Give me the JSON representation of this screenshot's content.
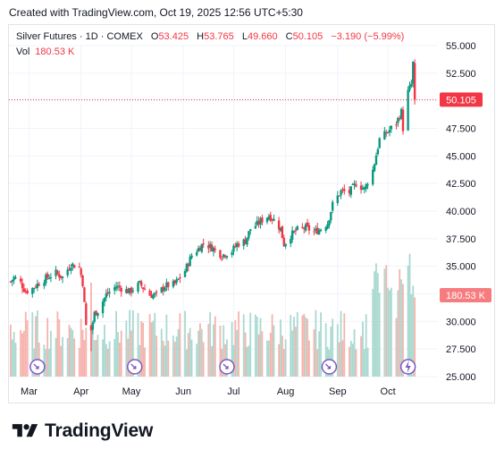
{
  "created_line": "Created with TradingView.com, Oct 19, 2025 12:56 UTC+5:30",
  "legend": {
    "symbol": "Silver Futures · 1D · COMEX",
    "o_label": "O",
    "o_value": "53.425",
    "h_label": "H",
    "h_value": "53.765",
    "l_label": "L",
    "l_value": "49.660",
    "c_label": "C",
    "c_value": "50.105",
    "change": "−3.190 (−5.99%)",
    "vol_label": "Vol",
    "vol_value": "180.53 K"
  },
  "price_badge": "50.105",
  "volume_badge": "180.53 K",
  "brand": "TradingView",
  "colors": {
    "up": "#089981",
    "down": "#f23645",
    "up_vol": "#a9d9d0",
    "down_vol": "#f6b3ad",
    "event": "#7e57c2"
  },
  "chart_data": {
    "type": "candlestick",
    "y_axis": {
      "ticks": [
        "55.000",
        "52.500",
        "50.000",
        "47.500",
        "45.000",
        "42.500",
        "40.000",
        "37.500",
        "35.000",
        "32.500",
        "30.000",
        "27.500",
        "25.000"
      ],
      "ylim": [
        25.0,
        55.5
      ]
    },
    "x_axis": {
      "ticks": [
        "Mar",
        "Apr",
        "May",
        "Jun",
        "Jul",
        "Aug",
        "Sep",
        "Oct"
      ]
    },
    "last_close": 50.105,
    "close_path": [
      [
        "2025-02-18",
        33.6
      ],
      [
        "2025-02-20",
        34.0
      ],
      [
        "2025-02-24",
        33.5
      ],
      [
        "2025-02-27",
        32.7
      ],
      [
        "2025-03-03",
        33.0
      ],
      [
        "2025-03-07",
        33.5
      ],
      [
        "2025-03-12",
        34.0
      ],
      [
        "2025-03-17",
        34.4
      ],
      [
        "2025-03-21",
        34.0
      ],
      [
        "2025-03-26",
        35.2
      ],
      [
        "2025-03-31",
        34.9
      ],
      [
        "2025-04-02",
        33.5
      ],
      [
        "2025-04-04",
        29.6
      ],
      [
        "2025-04-07",
        29.2
      ],
      [
        "2025-04-09",
        30.7
      ],
      [
        "2025-04-11",
        31.0
      ],
      [
        "2025-04-16",
        32.4
      ],
      [
        "2025-04-22",
        33.2
      ],
      [
        "2025-04-25",
        33.0
      ],
      [
        "2025-04-30",
        32.7
      ],
      [
        "2025-05-06",
        33.4
      ],
      [
        "2025-05-12",
        32.4
      ],
      [
        "2025-05-16",
        32.4
      ],
      [
        "2025-05-21",
        33.2
      ],
      [
        "2025-05-27",
        33.4
      ],
      [
        "2025-06-02",
        34.6
      ],
      [
        "2025-06-06",
        36.0
      ],
      [
        "2025-06-10",
        36.6
      ],
      [
        "2025-06-13",
        37.1
      ],
      [
        "2025-06-18",
        36.7
      ],
      [
        "2025-06-24",
        36.0
      ],
      [
        "2025-06-30",
        36.4
      ],
      [
        "2025-07-03",
        37.0
      ],
      [
        "2025-07-08",
        37.3
      ],
      [
        "2025-07-11",
        38.4
      ],
      [
        "2025-07-15",
        38.8
      ],
      [
        "2025-07-18",
        39.2
      ],
      [
        "2025-07-22",
        39.6
      ],
      [
        "2025-07-25",
        39.2
      ],
      [
        "2025-07-29",
        38.4
      ],
      [
        "2025-07-31",
        37.0
      ],
      [
        "2025-08-04",
        37.8
      ],
      [
        "2025-08-08",
        38.3
      ],
      [
        "2025-08-13",
        38.5
      ],
      [
        "2025-08-18",
        38.1
      ],
      [
        "2025-08-21",
        38.3
      ],
      [
        "2025-08-26",
        38.9
      ],
      [
        "2025-08-29",
        40.6
      ],
      [
        "2025-09-03",
        41.8
      ],
      [
        "2025-09-08",
        41.7
      ],
      [
        "2025-09-12",
        42.5
      ],
      [
        "2025-09-17",
        42.0
      ],
      [
        "2025-09-22",
        43.7
      ],
      [
        "2025-09-26",
        46.5
      ],
      [
        "2025-10-01",
        47.2
      ],
      [
        "2025-10-06",
        48.0
      ],
      [
        "2025-10-09",
        49.0
      ],
      [
        "2025-10-10",
        47.5
      ],
      [
        "2025-10-13",
        50.8
      ],
      [
        "2025-10-15",
        51.5
      ],
      [
        "2025-10-16",
        53.4
      ],
      [
        "2025-10-17",
        50.105
      ]
    ]
  }
}
